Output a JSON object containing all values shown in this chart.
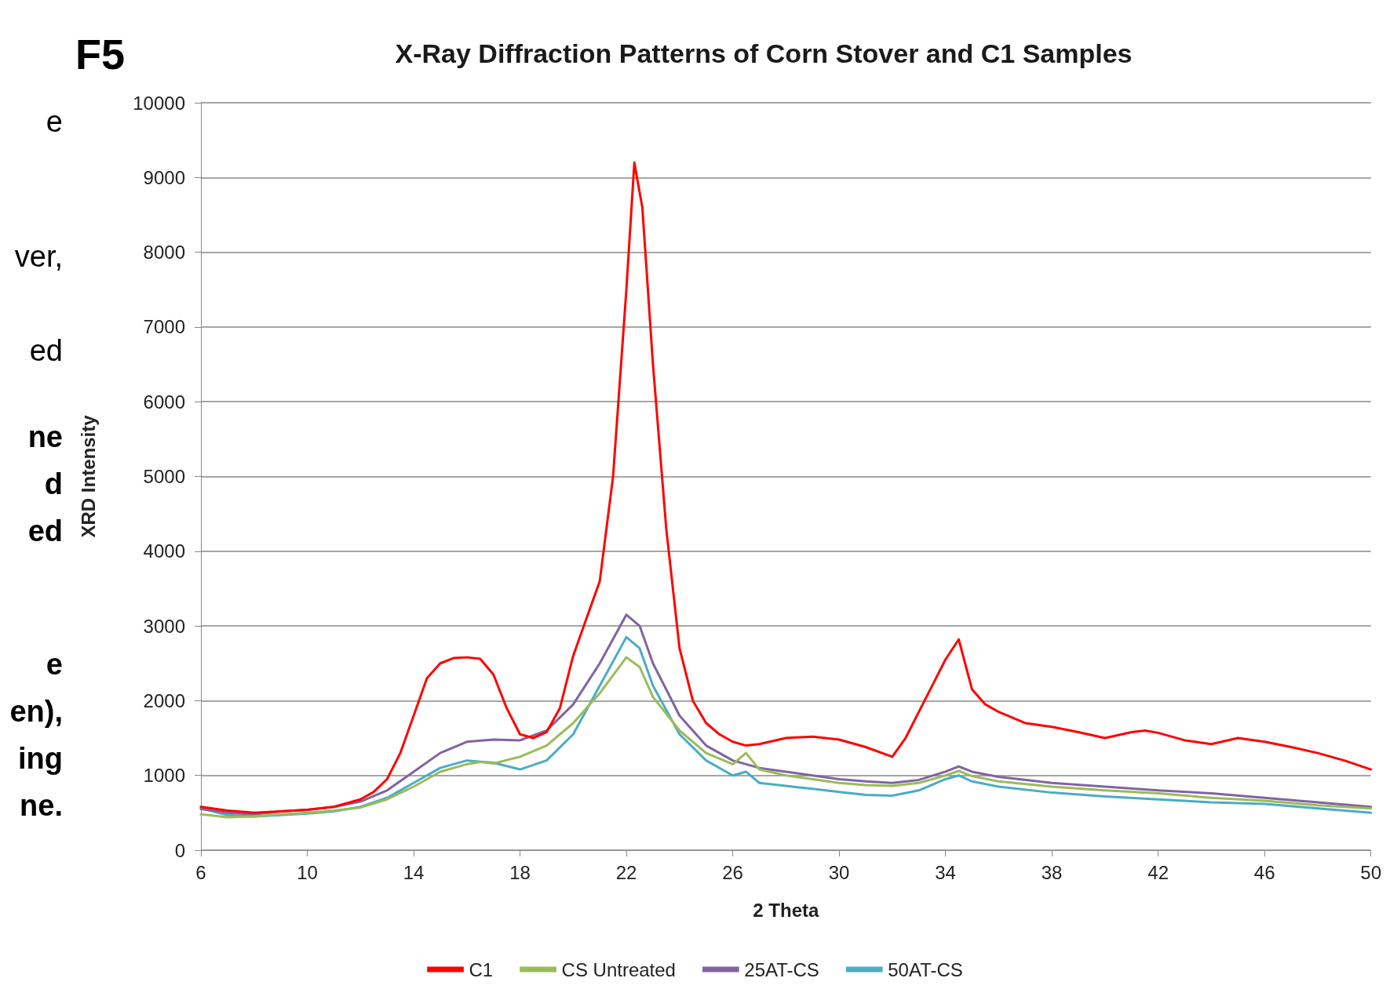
{
  "chart_data": {
    "type": "line",
    "title": "X-Ray Diffraction Patterns of Corn Stover and C1 Samples",
    "xlabel": "2 Theta",
    "ylabel": "XRD Intensity",
    "annotations": [
      "F5",
      "e",
      "ver,",
      "ed",
      "ne",
      "d",
      "ed",
      "e",
      "en),",
      "ing",
      "ne."
    ],
    "xlim": [
      6,
      50
    ],
    "xticks": [
      6,
      10,
      14,
      18,
      22,
      26,
      30,
      34,
      38,
      42,
      46,
      50
    ],
    "ylim": [
      0,
      10000
    ],
    "yticks": [
      0,
      1000,
      2000,
      3000,
      4000,
      5000,
      6000,
      7000,
      8000,
      9000,
      10000
    ],
    "grid": "y",
    "legend": "bottom",
    "marker": "none",
    "line_style": "solid",
    "series": [
      {
        "name": "C1",
        "color": "#ff0000",
        "x": [
          6,
          7,
          8,
          9,
          10,
          11,
          12,
          12.5,
          13,
          13.5,
          14,
          14.5,
          15,
          15.5,
          16,
          16.5,
          17,
          17.5,
          18,
          18.5,
          19,
          19.5,
          20,
          20.5,
          21,
          21.5,
          22,
          22.3,
          22.6,
          23,
          23.5,
          24,
          24.5,
          25,
          25.5,
          26,
          26.5,
          27,
          28,
          29,
          30,
          31,
          32,
          32.5,
          33,
          33.5,
          34,
          34.5,
          35,
          35.5,
          36,
          37,
          38,
          39,
          40,
          41,
          41.5,
          42,
          43,
          44,
          45,
          46,
          47,
          48,
          49,
          50
        ],
        "values": [
          580,
          530,
          500,
          520,
          540,
          580,
          680,
          780,
          950,
          1300,
          1800,
          2300,
          2500,
          2570,
          2580,
          2560,
          2350,
          1900,
          1550,
          1500,
          1580,
          1900,
          2600,
          3100,
          3600,
          5000,
          7500,
          9200,
          8600,
          6500,
          4300,
          2700,
          2000,
          1700,
          1550,
          1450,
          1400,
          1420,
          1500,
          1520,
          1480,
          1380,
          1250,
          1500,
          1850,
          2200,
          2550,
          2820,
          2150,
          1950,
          1850,
          1700,
          1650,
          1580,
          1500,
          1580,
          1600,
          1570,
          1470,
          1420,
          1500,
          1450,
          1380,
          1300,
          1200,
          1080
        ]
      },
      {
        "name": "CS Untreated",
        "color": "#9bbb59",
        "x": [
          6,
          7,
          8,
          9,
          10,
          11,
          12,
          13,
          14,
          15,
          16,
          16.5,
          17,
          18,
          19,
          20,
          21,
          22,
          22.5,
          23,
          24,
          25,
          26,
          26.5,
          27,
          28,
          29,
          30,
          31,
          32,
          33,
          34,
          34.5,
          35,
          36,
          38,
          40,
          42,
          44,
          46,
          48,
          50
        ],
        "values": [
          480,
          440,
          450,
          480,
          500,
          530,
          570,
          680,
          850,
          1050,
          1150,
          1180,
          1160,
          1250,
          1400,
          1700,
          2100,
          2580,
          2450,
          2050,
          1600,
          1300,
          1150,
          1300,
          1080,
          1000,
          950,
          900,
          870,
          860,
          900,
          1000,
          1060,
          990,
          920,
          850,
          800,
          760,
          700,
          660,
          600,
          560
        ]
      },
      {
        "name": "25AT-CS",
        "color": "#8064a2",
        "x": [
          6,
          7,
          8,
          9,
          10,
          11,
          12,
          13,
          14,
          15,
          16,
          17,
          18,
          19,
          20,
          21,
          22,
          22.5,
          23,
          24,
          25,
          26,
          27,
          28,
          29,
          30,
          31,
          32,
          33,
          34,
          34.5,
          35,
          36,
          38,
          40,
          42,
          44,
          46,
          48,
          50
        ],
        "values": [
          550,
          500,
          480,
          520,
          540,
          580,
          650,
          800,
          1050,
          1300,
          1450,
          1480,
          1470,
          1600,
          1950,
          2500,
          3150,
          3000,
          2500,
          1800,
          1400,
          1200,
          1100,
          1050,
          1000,
          950,
          920,
          900,
          940,
          1050,
          1120,
          1050,
          980,
          900,
          850,
          800,
          760,
          700,
          640,
          580
        ]
      },
      {
        "name": "50AT-CS",
        "color": "#4bacc6",
        "x": [
          6,
          7,
          8,
          9,
          10,
          11,
          12,
          13,
          14,
          15,
          16,
          17,
          18,
          19,
          20,
          21,
          22,
          22.5,
          23,
          24,
          25,
          26,
          26.5,
          27,
          28,
          29,
          30,
          31,
          32,
          33,
          34,
          34.5,
          35,
          36,
          38,
          40,
          42,
          44,
          46,
          48,
          50
        ],
        "values": [
          560,
          470,
          450,
          470,
          490,
          520,
          580,
          700,
          900,
          1100,
          1200,
          1170,
          1080,
          1200,
          1550,
          2200,
          2850,
          2700,
          2200,
          1550,
          1200,
          1000,
          1050,
          900,
          860,
          820,
          780,
          740,
          730,
          800,
          950,
          1000,
          920,
          850,
          770,
          720,
          680,
          640,
          620,
          560,
          500
        ]
      }
    ]
  }
}
